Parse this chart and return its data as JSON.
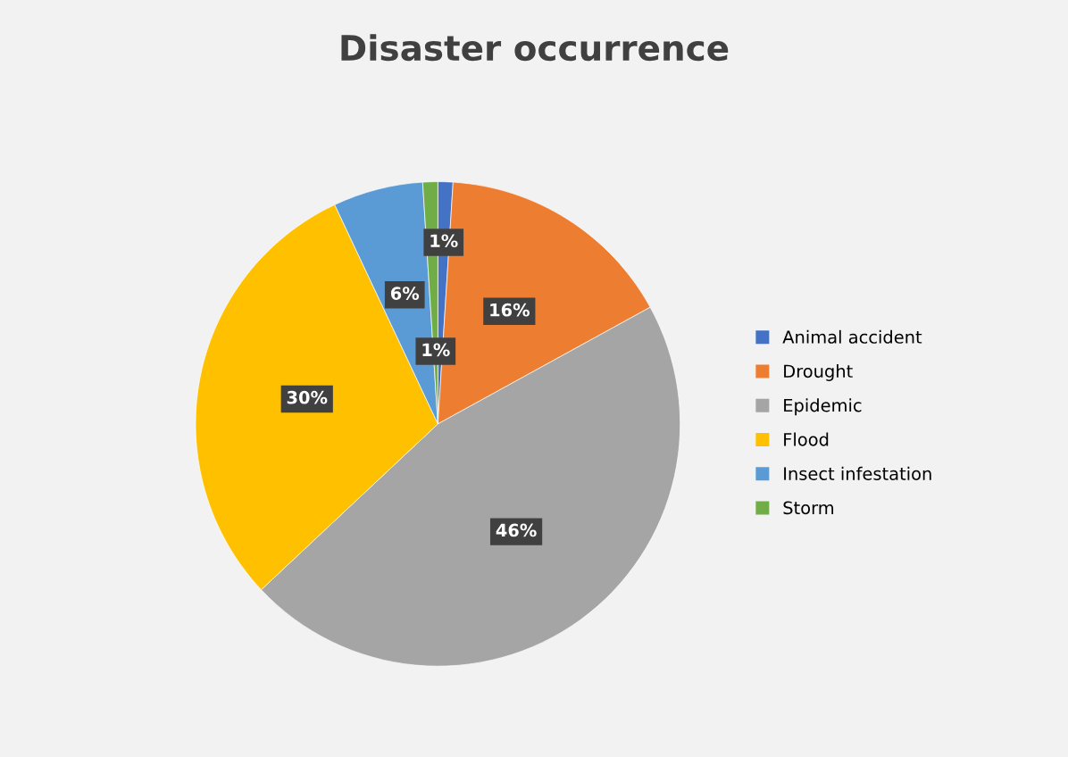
{
  "chart_data": {
    "type": "pie",
    "title": "Disaster occurrence",
    "categories": [
      "Animal accident",
      "Drought",
      "Epidemic",
      "Flood",
      "Insect infestation",
      "Storm"
    ],
    "values": [
      1,
      16,
      46,
      30,
      6,
      1
    ],
    "colors": [
      "#4472c4",
      "#ed7d31",
      "#a5a5a5",
      "#ffc000",
      "#5b9bd5",
      "#70ad47"
    ],
    "value_labels": [
      "1%",
      "16%",
      "46%",
      "30%",
      "6%",
      "1%"
    ],
    "legend": "right"
  }
}
